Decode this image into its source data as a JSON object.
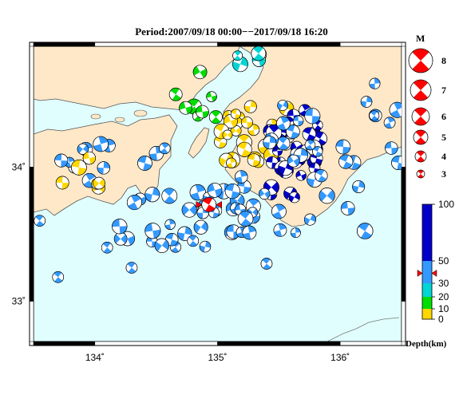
{
  "title": "Period:2007/09/18 00:00−−2017/09/18 16:20",
  "map": {
    "lon_range": [
      133.5,
      136.5
    ],
    "lat_range": [
      32.7,
      34.9
    ],
    "lon_ticks": [
      {
        "v": 134,
        "label": "134˚"
      },
      {
        "v": 135,
        "label": "135˚"
      },
      {
        "v": 136,
        "label": "136˚"
      }
    ],
    "lat_ticks": [
      {
        "v": 34,
        "label": "34˚"
      },
      {
        "v": 33,
        "label": "33˚"
      }
    ],
    "colors": {
      "sea": "#e0fefe",
      "land": "#fee8c8",
      "coast": "#555555"
    }
  },
  "magnitude_legend": {
    "title": "M",
    "items": [
      8,
      7,
      6,
      5,
      4,
      3
    ]
  },
  "depth_scale": {
    "labels": [
      "100",
      "50",
      "30",
      "20",
      "10",
      "0"
    ],
    "unit": "Depth(km)",
    "bands": [
      {
        "from": 0,
        "to": 10,
        "color": "#ffd700"
      },
      {
        "from": 10,
        "to": 20,
        "color": "#00dd00"
      },
      {
        "from": 20,
        "to": 30,
        "color": "#00d5d5"
      },
      {
        "from": 30,
        "to": 50,
        "color": "#3399ff"
      },
      {
        "from": 50,
        "to": 100,
        "color": "#0000c8"
      }
    ]
  },
  "target_event": {
    "lon": 134.93,
    "lat": 33.72,
    "depth_marker": 39
  }
}
